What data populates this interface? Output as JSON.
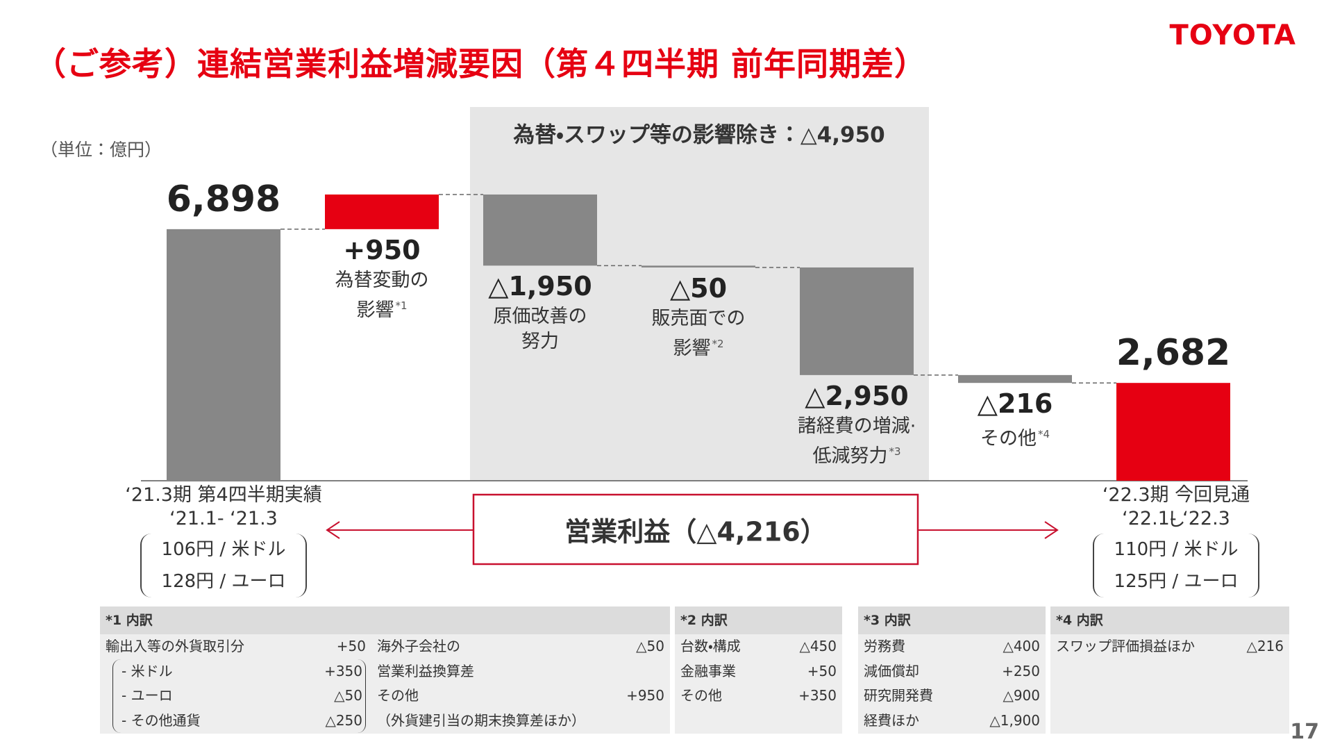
{
  "title": "（ご参考）連結営業利益増減要因（第４四半期 前年同期差）",
  "logo": "TOYOTA",
  "unit": "（単位：億円）",
  "page_number": "17",
  "chart_data": {
    "type": "waterfall",
    "categories": [
      "‘21.3期 第4四半期実績",
      "為替変動の\n影響",
      "原価改善の\n努力",
      "販売面での\n影響",
      "諸経費の増減·\n低減努力",
      "その他",
      "‘22.3期 今回見通し"
    ],
    "notes": [
      null,
      "*1",
      null,
      "*2",
      "*3",
      "*4",
      null
    ],
    "measures": [
      "absolute",
      "relative",
      "relative",
      "relative",
      "relative",
      "relative",
      "total"
    ],
    "values": [
      6898,
      950,
      -1950,
      -50,
      -2950,
      -216,
      2682
    ],
    "value_labels": [
      "6,898",
      "+950",
      "△1,950",
      "△50",
      "△2,950",
      "△216",
      "2,682"
    ],
    "colors": [
      "#878787",
      "#e60012",
      "#878787",
      "#878787",
      "#878787",
      "#878787",
      "#e60012"
    ],
    "highlight": {
      "label": "為替・スワップ等の影響除き：△4,950"
    },
    "total_change": "営業利益（△4,216）",
    "start_detail": {
      "period": "‘21.1- ‘21.3",
      "rates": [
        "106円 / 米ドル",
        "128円 / ユーロ"
      ]
    },
    "end_detail": {
      "period": "‘22.1- ‘22.3",
      "rates": [
        "110円 / 米ドル",
        "125円 / ユーロ"
      ]
    }
  },
  "footnotes": [
    {
      "title": "*1 内訳",
      "columns": [
        [
          {
            "label": "輸出入等の外貨取引分",
            "value": "+50",
            "breakdown": [
              {
                "label": "- 米ドル",
                "value": "+350"
              },
              {
                "label": "- ユーロ",
                "value": "△50"
              },
              {
                "label": "- その他通貨",
                "value": "△250"
              }
            ]
          }
        ],
        [
          {
            "label": "海外子会社の\n営業利益換算差",
            "value": "△50"
          },
          {
            "label": "その他",
            "value": "+950"
          },
          {
            "label": "（外貨建引当の期末換算差ほか）"
          }
        ]
      ]
    },
    {
      "title": "*2 内訳",
      "columns": [
        [
          {
            "label": "台数・構成",
            "value": "△450"
          },
          {
            "label": "金融事業",
            "value": "+50"
          },
          {
            "label": "その他",
            "value": "+350"
          }
        ]
      ]
    },
    {
      "title": "*3 内訳",
      "columns": [
        [
          {
            "label": "労務費",
            "value": "△400"
          },
          {
            "label": "減価償却",
            "value": "+250"
          },
          {
            "label": "研究開発費",
            "value": "△900"
          },
          {
            "label": "経費ほか",
            "value": "△1,900"
          }
        ]
      ]
    },
    {
      "title": "*4 内訳",
      "columns": [
        [
          {
            "label": "スワップ評価損益ほか",
            "value": "△216"
          }
        ]
      ]
    }
  ]
}
